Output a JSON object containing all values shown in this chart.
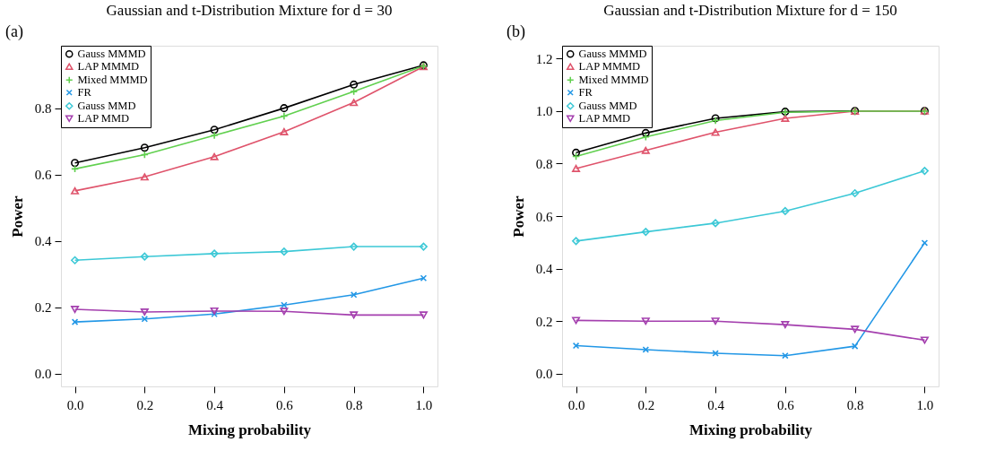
{
  "chart_data": [
    {
      "type": "line",
      "title": "Gaussian and t-Distribution Mixture for d = 30",
      "annotations": [
        "(a)"
      ],
      "xlabel": "Mixing probability",
      "ylabel": "Power",
      "legend": "top left",
      "line_style": "solid",
      "x": [
        0.0,
        0.2,
        0.4,
        0.6,
        0.8,
        1.0
      ],
      "xlim": [
        -0.04,
        1.04
      ],
      "ylim": [
        -0.038,
        0.988
      ],
      "xticks": [
        {
          "value": 0,
          "label": "0.0"
        },
        {
          "value": 0.2,
          "label": "0.2"
        },
        {
          "value": 0.4,
          "label": "0.4"
        },
        {
          "value": 0.6,
          "label": "0.6"
        },
        {
          "value": 0.8,
          "label": "0.8"
        },
        {
          "value": 1,
          "label": "1.0"
        }
      ],
      "yticks": [
        {
          "value": 0,
          "label": "0.0"
        },
        {
          "value": 0.2,
          "label": "0.2"
        },
        {
          "value": 0.4,
          "label": "0.4"
        },
        {
          "value": 0.6,
          "label": "0.6"
        },
        {
          "value": 0.8,
          "label": "0.8"
        }
      ],
      "series": [
        {
          "name": "Gauss MMMD",
          "color": "#000000",
          "marker": "circle",
          "values": [
            0.635,
            0.681,
            0.735,
            0.8,
            0.871,
            0.929
          ]
        },
        {
          "name": "LAP MMMD",
          "color": "#df536b",
          "marker": "triangle",
          "values": [
            0.551,
            0.593,
            0.654,
            0.729,
            0.817,
            0.925
          ]
        },
        {
          "name": "Mixed MMMD",
          "color": "#61d04f",
          "marker": "cross",
          "values": [
            0.617,
            0.66,
            0.718,
            0.776,
            0.85,
            0.927
          ]
        },
        {
          "name": "FR",
          "color": "#2297e6",
          "marker": "x",
          "values": [
            0.156,
            0.165,
            0.18,
            0.207,
            0.238,
            0.288
          ]
        },
        {
          "name": "Gauss MMD",
          "color": "#3cc8d6",
          "marker": "diamond",
          "values": [
            0.342,
            0.353,
            0.362,
            0.368,
            0.383,
            0.383
          ]
        },
        {
          "name": "LAP MMD",
          "color": "#a43fae",
          "marker": "triangle-down",
          "values": [
            0.194,
            0.186,
            0.189,
            0.188,
            0.177,
            0.177
          ]
        }
      ]
    },
    {
      "type": "line",
      "title": "Gaussian and t-Distribution Mixture for d = 150",
      "annotations": [
        "(b)"
      ],
      "xlabel": "Mixing probability",
      "ylabel": "Power",
      "legend": "top left",
      "line_style": "solid",
      "x": [
        0.0,
        0.2,
        0.4,
        0.6,
        0.8,
        1.0
      ],
      "xlim": [
        -0.04,
        1.04
      ],
      "ylim": [
        -0.048,
        1.248
      ],
      "xticks": [
        {
          "value": 0,
          "label": "0.0"
        },
        {
          "value": 0.2,
          "label": "0.2"
        },
        {
          "value": 0.4,
          "label": "0.4"
        },
        {
          "value": 0.6,
          "label": "0.6"
        },
        {
          "value": 0.8,
          "label": "0.8"
        },
        {
          "value": 1,
          "label": "1.0"
        }
      ],
      "yticks": [
        {
          "value": 0,
          "label": "0.0"
        },
        {
          "value": 0.2,
          "label": "0.2"
        },
        {
          "value": 0.4,
          "label": "0.4"
        },
        {
          "value": 0.6,
          "label": "0.6"
        },
        {
          "value": 0.8,
          "label": "0.8"
        },
        {
          "value": 1,
          "label": "1.0"
        },
        {
          "value": 1.2,
          "label": "1.2"
        }
      ],
      "series": [
        {
          "name": "Gauss MMMD",
          "color": "#000000",
          "marker": "circle",
          "values": [
            0.841,
            0.916,
            0.972,
            0.997,
            1.0,
            1.0
          ]
        },
        {
          "name": "LAP MMMD",
          "color": "#df536b",
          "marker": "triangle",
          "values": [
            0.781,
            0.85,
            0.919,
            0.972,
            0.999,
            1.0
          ]
        },
        {
          "name": "Mixed MMMD",
          "color": "#61d04f",
          "marker": "cross",
          "values": [
            0.827,
            0.901,
            0.963,
            0.995,
            0.999,
            0.999
          ]
        },
        {
          "name": "FR",
          "color": "#2297e6",
          "marker": "x",
          "values": [
            0.107,
            0.092,
            0.078,
            0.069,
            0.105,
            0.498
          ]
        },
        {
          "name": "Gauss MMD",
          "color": "#3cc8d6",
          "marker": "diamond",
          "values": [
            0.505,
            0.54,
            0.573,
            0.619,
            0.687,
            0.772
          ]
        },
        {
          "name": "LAP MMD",
          "color": "#a43fae",
          "marker": "triangle-down",
          "values": [
            0.203,
            0.2,
            0.2,
            0.187,
            0.169,
            0.128
          ]
        }
      ]
    }
  ]
}
